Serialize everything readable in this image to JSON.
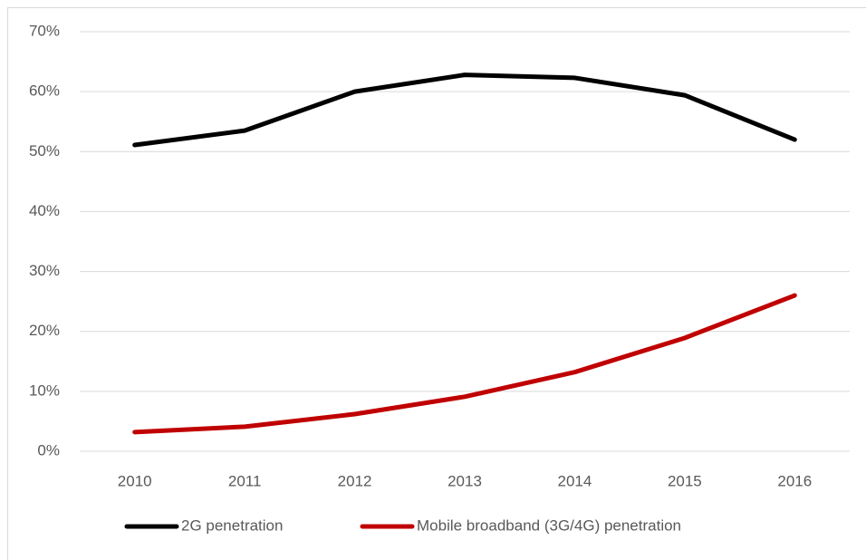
{
  "chart_data": {
    "type": "line",
    "categories": [
      "2010",
      "2011",
      "2012",
      "2013",
      "2014",
      "2015",
      "2016"
    ],
    "series": [
      {
        "name": "2G penetration",
        "color": "#000000",
        "values": [
          51.1,
          53.5,
          60.0,
          62.8,
          62.3,
          59.4,
          52.0
        ]
      },
      {
        "name": "Mobile broadband (3G/4G) penetration",
        "color": "#c00000",
        "values": [
          3.2,
          4.1,
          6.2,
          9.1,
          13.2,
          18.9,
          26.0
        ]
      }
    ],
    "ylim": [
      0,
      70
    ],
    "yticks": [
      {
        "value": 0,
        "label": "0%"
      },
      {
        "value": 10,
        "label": "10%"
      },
      {
        "value": 20,
        "label": "20%"
      },
      {
        "value": 30,
        "label": "30%"
      },
      {
        "value": 40,
        "label": "40%"
      },
      {
        "value": 50,
        "label": "50%"
      },
      {
        "value": 60,
        "label": "60%"
      },
      {
        "value": 70,
        "label": "70%"
      }
    ],
    "grid": true,
    "legend": "bottom"
  }
}
